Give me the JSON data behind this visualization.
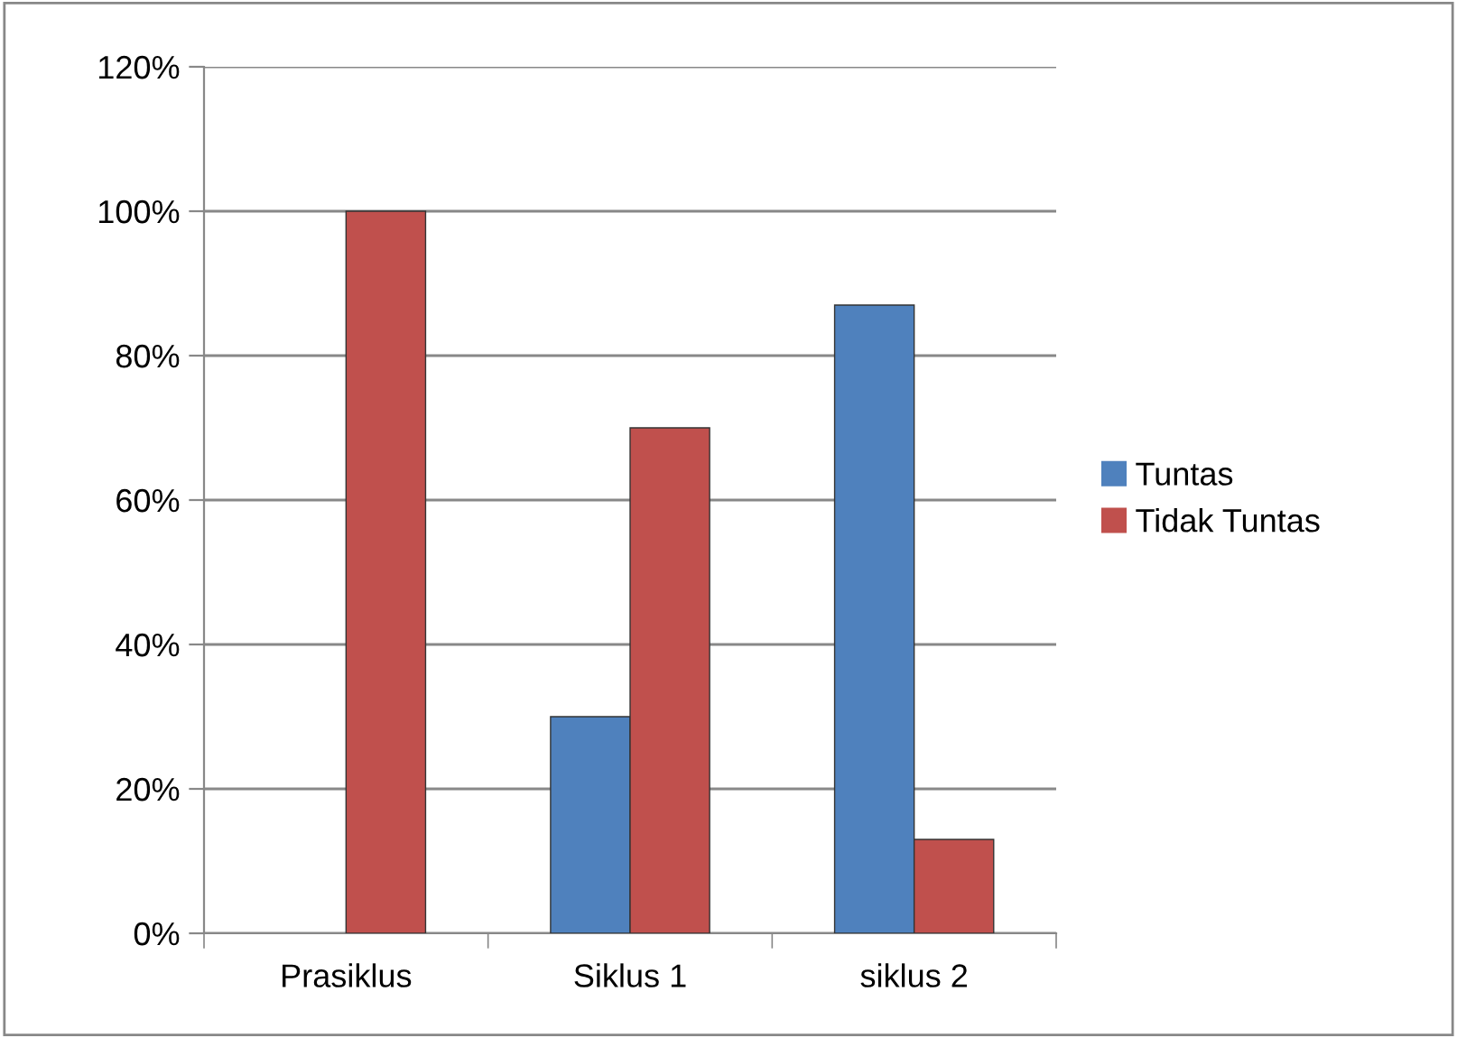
{
  "chart_data": {
    "type": "bar",
    "categories": [
      "Prasiklus",
      "Siklus 1",
      "siklus 2"
    ],
    "series": [
      {
        "name": "Tuntas",
        "color": "#4f81bd",
        "values": [
          null,
          30,
          87
        ]
      },
      {
        "name": "Tidak Tuntas",
        "color": "#c0504d",
        "values": [
          100,
          70,
          13
        ]
      }
    ],
    "ylim": [
      0,
      120
    ],
    "yticks": [
      {
        "value": 0,
        "label": "0%"
      },
      {
        "value": 20,
        "label": "20%"
      },
      {
        "value": 40,
        "label": "40%"
      },
      {
        "value": 60,
        "label": "60%"
      },
      {
        "value": 80,
        "label": "80%"
      },
      {
        "value": 100,
        "label": "100%"
      },
      {
        "value": 120,
        "label": "120%"
      }
    ],
    "grid": "y",
    "legend": "right"
  }
}
